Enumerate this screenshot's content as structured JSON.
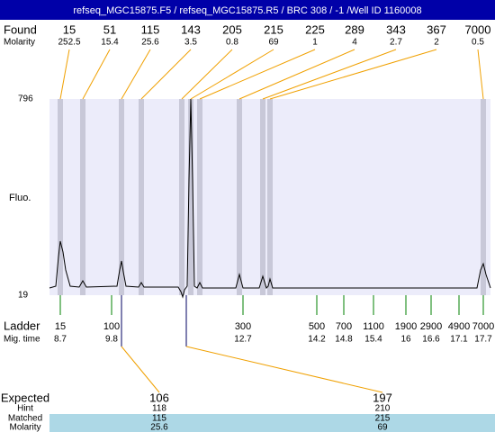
{
  "title": "refseq_MGC15875.F5 / refseq_MGC15875.R5 / BRC 308 / -1 /Well ID 1160008",
  "found": {
    "label": "Found",
    "molarity_label": "Molarity",
    "peaks": [
      {
        "size": 15,
        "molarity": 252.5
      },
      {
        "size": 51,
        "molarity": 15.4
      },
      {
        "size": 115,
        "molarity": 25.6
      },
      {
        "size": 143,
        "molarity": 3.5
      },
      {
        "size": 205,
        "molarity": 0.8
      },
      {
        "size": 215,
        "molarity": 69
      },
      {
        "size": 225,
        "molarity": 1
      },
      {
        "size": 289,
        "molarity": 4
      },
      {
        "size": 343,
        "molarity": 2.7
      },
      {
        "size": 367,
        "molarity": 2
      },
      {
        "size": 7000,
        "molarity": 0.5
      }
    ]
  },
  "plot": {
    "ylabel": "Fluo.",
    "ymax": 796,
    "ymin": 19
  },
  "ladder": {
    "label": "Ladder",
    "time_label": "Mig. time",
    "steps": [
      {
        "size": 15,
        "time": 8.7
      },
      {
        "size": 100,
        "time": 9.8
      },
      {
        "size": 300,
        "time": 12.7
      },
      {
        "size": 500,
        "time": 14.2
      },
      {
        "size": 700,
        "time": 14.8
      },
      {
        "size": 1100,
        "time": 15.4
      },
      {
        "size": 1900,
        "time": 16
      },
      {
        "size": 2900,
        "time": 16.6
      },
      {
        "size": 4900,
        "time": 17.1
      },
      {
        "size": 7000,
        "time": 17.7
      }
    ]
  },
  "expected": {
    "labels": [
      "Expected",
      "Hint",
      "Matched",
      "Molarity"
    ],
    "items": [
      {
        "expected": 106,
        "hint": 118,
        "matched": 115,
        "molarity": 25.6
      },
      {
        "expected": 197,
        "hint": 210,
        "matched": 215,
        "molarity": 69
      }
    ]
  }
}
